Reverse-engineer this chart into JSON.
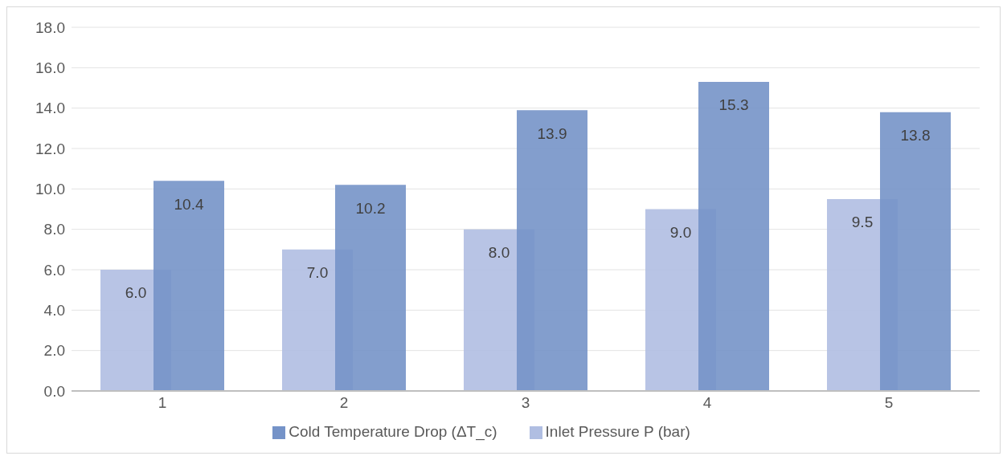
{
  "chart_data": {
    "type": "bar",
    "categories": [
      "1",
      "2",
      "3",
      "4",
      "5"
    ],
    "series": [
      {
        "name": "Inlet Pressure P (bar)",
        "color": "#b0bee2",
        "values": [
          6.0,
          7.0,
          8.0,
          9.0,
          9.5
        ],
        "value_labels": [
          "6.0",
          "7.0",
          "8.0",
          "9.0",
          "9.5"
        ]
      },
      {
        "name": "Cold Temperature Drop (ΔT_c)",
        "color": "#7593c8",
        "values": [
          10.4,
          10.2,
          13.9,
          15.3,
          13.8
        ],
        "value_labels": [
          "10.4",
          "10.2",
          "13.9",
          "15.3",
          "13.8"
        ]
      }
    ],
    "ylim": [
      0,
      18
    ],
    "yticks": [
      {
        "value": 0,
        "label": "0.0"
      },
      {
        "value": 2,
        "label": "2.0"
      },
      {
        "value": 4,
        "label": "4.0"
      },
      {
        "value": 6,
        "label": "6.0"
      },
      {
        "value": 8,
        "label": "8.0"
      },
      {
        "value": 10,
        "label": "10.0"
      },
      {
        "value": 12,
        "label": "12.0"
      },
      {
        "value": 14,
        "label": "14.0"
      },
      {
        "value": 16,
        "label": "16.0"
      },
      {
        "value": 18,
        "label": "18.0"
      }
    ],
    "grid": "y",
    "legend": "bottom"
  }
}
